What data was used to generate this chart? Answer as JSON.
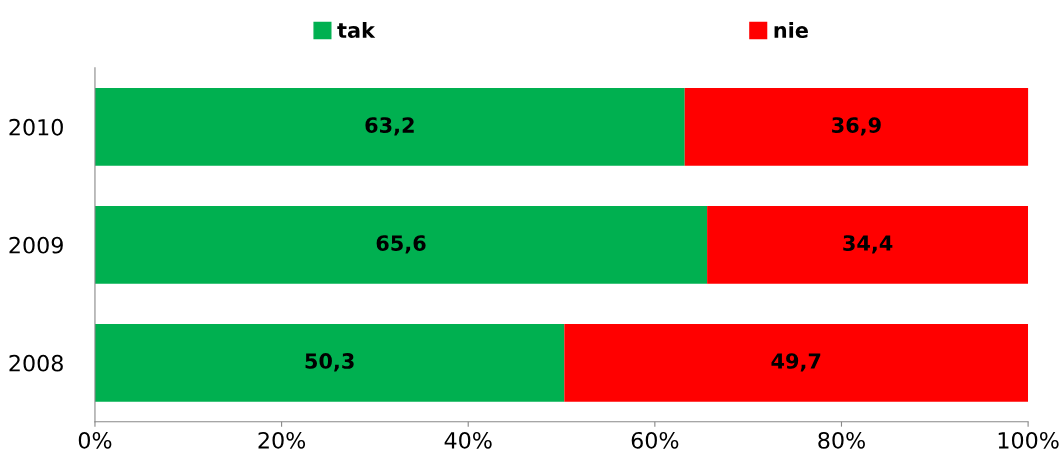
{
  "chart_data": {
    "type": "bar",
    "orientation": "horizontal",
    "stacked": true,
    "categories": [
      "2010",
      "2009",
      "2008"
    ],
    "series": [
      {
        "name": "tak",
        "color": "#00b050",
        "values": [
          63.2,
          65.6,
          50.3
        ],
        "value_labels": [
          "63,2",
          "65,6",
          "50,3"
        ]
      },
      {
        "name": "nie",
        "color": "#ff0000",
        "values": [
          36.9,
          34.4,
          49.7
        ],
        "value_labels": [
          "36,9",
          "34,4",
          "49,7"
        ]
      }
    ],
    "xlim": [
      0,
      100
    ],
    "xticks": [
      {
        "value": 0,
        "label": "0%"
      },
      {
        "value": 20,
        "label": "20%"
      },
      {
        "value": 40,
        "label": "40%"
      },
      {
        "value": 60,
        "label": "60%"
      },
      {
        "value": 80,
        "label": "80%"
      },
      {
        "value": 100,
        "label": "100%"
      }
    ],
    "grid": false,
    "legend": "top"
  }
}
